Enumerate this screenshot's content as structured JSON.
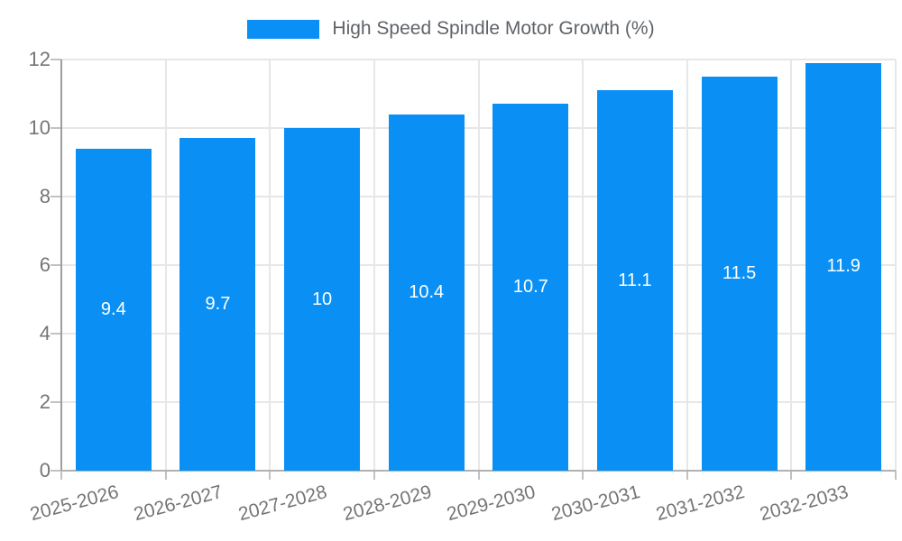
{
  "chart_data": {
    "type": "bar",
    "series_name": "High Speed Spindle Motor Growth (%)",
    "categories": [
      "2025-2026",
      "2026-2027",
      "2027-2028",
      "2028-2029",
      "2029-2030",
      "2030-2031",
      "2031-2032",
      "2032-2033"
    ],
    "values": [
      9.4,
      9.7,
      10,
      10.4,
      10.7,
      11.1,
      11.5,
      11.9
    ],
    "title": "",
    "xlabel": "",
    "ylabel": "",
    "ylim": [
      0,
      12
    ],
    "yticks": [
      0,
      2,
      4,
      6,
      8,
      10,
      12
    ],
    "grid": true,
    "legend_position": "top",
    "bar_color": "#0a90f5",
    "bar_label_color": "#ffffff",
    "grid_color": "#e7e7e7",
    "tick_color": "#c2c2c2",
    "y_axis_color": "#9e9e9e",
    "x_axis_color": "#b2b2b2",
    "axis_text_color": "#757575",
    "legend_text_color": "#5f6368",
    "x_label_rotation_deg": -15
  }
}
